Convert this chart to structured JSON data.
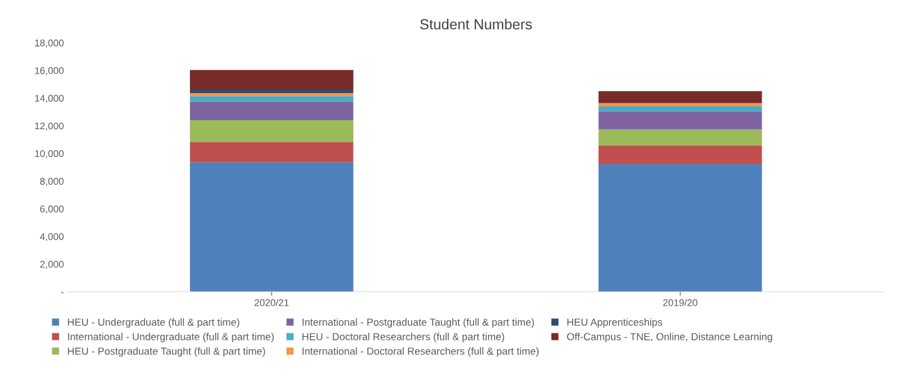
{
  "chart_data": {
    "type": "bar",
    "stacked": true,
    "title": "Student Numbers",
    "categories": [
      "2020/21",
      "2019/20"
    ],
    "ylim": [
      0,
      18000
    ],
    "yticks": [
      {
        "value": 0,
        "label": "-"
      },
      {
        "value": 2000,
        "label": "2,000"
      },
      {
        "value": 4000,
        "label": "4,000"
      },
      {
        "value": 6000,
        "label": "6,000"
      },
      {
        "value": 8000,
        "label": "8,000"
      },
      {
        "value": 10000,
        "label": "10,000"
      },
      {
        "value": 12000,
        "label": "12,000"
      },
      {
        "value": 14000,
        "label": "14,000"
      },
      {
        "value": 16000,
        "label": "16,000"
      },
      {
        "value": 18000,
        "label": "18,000"
      }
    ],
    "legend": "bottom",
    "grid": false,
    "series": [
      {
        "name": "HEU - Undergraduate (full & part time)",
        "color": "#4f81bd",
        "values": [
          9360,
          9240
        ]
      },
      {
        "name": "International - Undergraduate (full & part time)",
        "color": "#c0504d",
        "values": [
          1470,
          1350
        ]
      },
      {
        "name": "HEU - Postgraduate Taught (full & part time)",
        "color": "#9bbb59",
        "values": [
          1570,
          1140
        ]
      },
      {
        "name": "International - Postgraduate Taught (full & part time)",
        "color": "#8064a2",
        "values": [
          1350,
          1320
        ]
      },
      {
        "name": "HEU - Doctoral Researchers (full & part time)",
        "color": "#4bacc6",
        "values": [
          400,
          360
        ]
      },
      {
        "name": "International - Doctoral Researchers (full & part time)",
        "color": "#f79646",
        "values": [
          210,
          230
        ]
      },
      {
        "name": "HEU Apprenticeships",
        "color": "#2c4d75",
        "values": [
          260,
          0
        ]
      },
      {
        "name": "Off-Campus - TNE, Online, Distance Learning",
        "color": "#772c2a",
        "values": [
          1410,
          860
        ]
      }
    ]
  }
}
